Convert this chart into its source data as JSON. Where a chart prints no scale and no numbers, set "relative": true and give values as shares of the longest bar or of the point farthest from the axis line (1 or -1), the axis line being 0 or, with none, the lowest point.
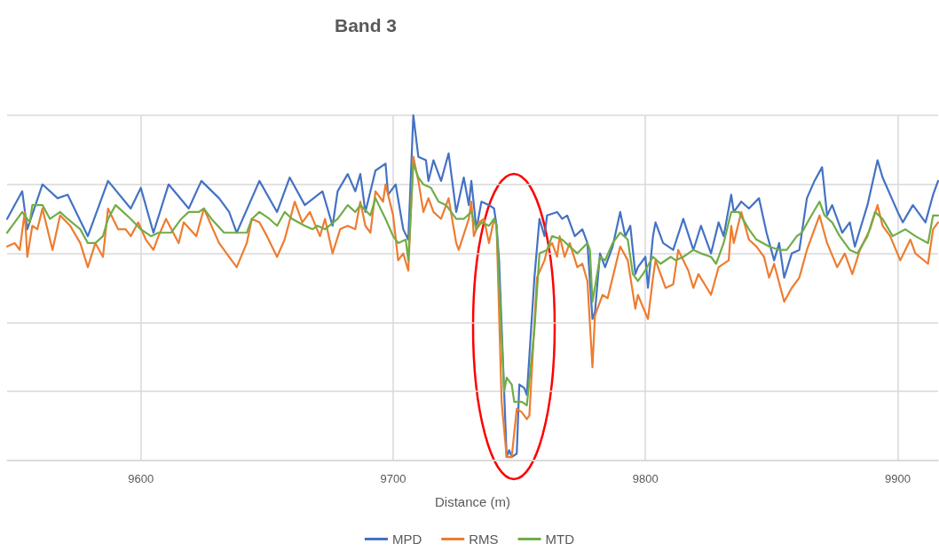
{
  "chart_data": {
    "type": "line",
    "title": "Band 3",
    "xlabel": "Distance (m)",
    "relative": true,
    "grid": true,
    "legend": "bottom",
    "marker": "none",
    "line_style": "solid",
    "xlim": [
      9547,
      9916
    ],
    "xticks": [
      9600,
      9700,
      9800,
      9900
    ],
    "series": [
      {
        "name": "MPD",
        "color": "#4472c4",
        "x": [
          9547,
          9553,
          9555,
          9561,
          9567,
          9571,
          9579,
          9587,
          9596,
          9600,
          9605,
          9611,
          9619,
          9624,
          9631,
          9635,
          9638,
          9647,
          9654,
          9659,
          9665,
          9672,
          9676,
          9678,
          9682,
          9685,
          9687,
          9689,
          9693,
          9697,
          9698,
          9701,
          9704,
          9706,
          9708,
          9710,
          9713,
          9714,
          9716,
          9719,
          9722,
          9725,
          9728,
          9730,
          9731,
          9733,
          9735,
          9738,
          9740,
          9741,
          9742,
          9744,
          9745,
          9746,
          9747,
          9749,
          9750,
          9752,
          9753,
          9756,
          9758,
          9760,
          9761,
          9765,
          9767,
          9769,
          9772,
          9775,
          9777,
          9779,
          9780,
          9782,
          9784,
          9787,
          9790,
          9792,
          9794,
          9796,
          9797,
          9800,
          9801,
          9803,
          9804,
          9807,
          9811,
          9815,
          9819,
          9822,
          9826,
          9829,
          9831,
          9834,
          9835,
          9838,
          9841,
          9845,
          9848,
          9851,
          9853,
          9855,
          9858,
          9861,
          9864,
          9867,
          9870,
          9872,
          9874,
          9878,
          9881,
          9883,
          9888,
          9892,
          9894,
          9900,
          9902,
          9906,
          9911,
          9914,
          9916
        ],
        "values": [
          0.7,
          0.78,
          0.67,
          0.8,
          0.76,
          0.77,
          0.65,
          0.81,
          0.73,
          0.79,
          0.66,
          0.8,
          0.73,
          0.81,
          0.76,
          0.72,
          0.66,
          0.81,
          0.72,
          0.82,
          0.74,
          0.78,
          0.68,
          0.78,
          0.83,
          0.78,
          0.83,
          0.72,
          0.84,
          0.86,
          0.77,
          0.8,
          0.67,
          0.64,
          1.0,
          0.88,
          0.87,
          0.81,
          0.87,
          0.81,
          0.89,
          0.72,
          0.82,
          0.74,
          0.81,
          0.67,
          0.75,
          0.74,
          0.73,
          0.68,
          0.58,
          0.2,
          0.01,
          0.03,
          0.01,
          0.02,
          0.22,
          0.21,
          0.19,
          0.53,
          0.7,
          0.65,
          0.71,
          0.72,
          0.7,
          0.71,
          0.65,
          0.67,
          0.63,
          0.41,
          0.43,
          0.6,
          0.56,
          0.62,
          0.72,
          0.65,
          0.68,
          0.54,
          0.56,
          0.59,
          0.5,
          0.65,
          0.69,
          0.63,
          0.61,
          0.7,
          0.61,
          0.68,
          0.6,
          0.69,
          0.65,
          0.77,
          0.72,
          0.75,
          0.73,
          0.76,
          0.66,
          0.58,
          0.63,
          0.53,
          0.6,
          0.61,
          0.76,
          0.81,
          0.85,
          0.71,
          0.74,
          0.66,
          0.69,
          0.62,
          0.74,
          0.87,
          0.82,
          0.72,
          0.69,
          0.74,
          0.69,
          0.77,
          0.81
        ]
      },
      {
        "name": "RMS",
        "color": "#ed7d31",
        "x": [
          9547,
          9550,
          9552,
          9554,
          9555,
          9557,
          9559,
          9561,
          9565,
          9568,
          9572,
          9576,
          9579,
          9582,
          9585,
          9587,
          9589,
          9591,
          9594,
          9596,
          9599,
          9602,
          9605,
          9607,
          9610,
          9615,
          9617,
          9622,
          9625,
          9628,
          9631,
          9633,
          9638,
          9642,
          9644,
          9647,
          9650,
          9654,
          9657,
          9661,
          9664,
          9667,
          9671,
          9673,
          9676,
          9679,
          9682,
          9685,
          9687,
          9689,
          9691,
          9693,
          9696,
          9697,
          9700,
          9702,
          9704,
          9706,
          9708,
          9710,
          9712,
          9714,
          9716,
          9719,
          9722,
          9725,
          9726,
          9730,
          9731,
          9732,
          9734,
          9736,
          9738,
          9740,
          9741,
          9743,
          9745,
          9747,
          9749,
          9751,
          9753,
          9754,
          9757,
          9760,
          9761,
          9763,
          9765,
          9766,
          9768,
          9770,
          9773,
          9775,
          9777,
          9779,
          9780,
          9783,
          9785,
          9788,
          9790,
          9793,
          9796,
          9797,
          9801,
          9803,
          9804,
          9808,
          9811,
          9813,
          9817,
          9819,
          9821,
          9826,
          9829,
          9833,
          9834,
          9835,
          9838,
          9841,
          9844,
          9847,
          9849,
          9851,
          9855,
          9858,
          9861,
          9864,
          9869,
          9872,
          9876,
          9879,
          9882,
          9885,
          9889,
          9892,
          9894,
          9897,
          9901,
          9905,
          9907,
          9912,
          9914,
          9916
        ],
        "values": [
          0.62,
          0.63,
          0.61,
          0.72,
          0.59,
          0.68,
          0.67,
          0.73,
          0.61,
          0.71,
          0.68,
          0.63,
          0.56,
          0.63,
          0.59,
          0.73,
          0.7,
          0.67,
          0.67,
          0.65,
          0.69,
          0.64,
          0.61,
          0.65,
          0.7,
          0.63,
          0.69,
          0.65,
          0.73,
          0.68,
          0.63,
          0.61,
          0.56,
          0.63,
          0.7,
          0.69,
          0.65,
          0.59,
          0.64,
          0.75,
          0.69,
          0.72,
          0.65,
          0.7,
          0.6,
          0.67,
          0.68,
          0.67,
          0.75,
          0.68,
          0.66,
          0.78,
          0.75,
          0.8,
          0.71,
          0.58,
          0.6,
          0.55,
          0.88,
          0.81,
          0.72,
          0.76,
          0.72,
          0.7,
          0.76,
          0.63,
          0.61,
          0.7,
          0.75,
          0.65,
          0.69,
          0.7,
          0.63,
          0.7,
          0.68,
          0.17,
          0.01,
          0.01,
          0.15,
          0.14,
          0.12,
          0.13,
          0.53,
          0.58,
          0.61,
          0.63,
          0.59,
          0.65,
          0.59,
          0.63,
          0.56,
          0.57,
          0.52,
          0.27,
          0.42,
          0.48,
          0.47,
          0.56,
          0.62,
          0.58,
          0.44,
          0.48,
          0.41,
          0.53,
          0.58,
          0.5,
          0.51,
          0.61,
          0.55,
          0.5,
          0.54,
          0.48,
          0.56,
          0.58,
          0.68,
          0.63,
          0.72,
          0.64,
          0.62,
          0.59,
          0.53,
          0.57,
          0.46,
          0.5,
          0.53,
          0.61,
          0.71,
          0.63,
          0.56,
          0.6,
          0.54,
          0.61,
          0.67,
          0.74,
          0.68,
          0.65,
          0.58,
          0.64,
          0.6,
          0.57,
          0.67,
          0.69
        ]
      },
      {
        "name": "MTD",
        "color": "#70ad47",
        "x": [
          9547,
          9550,
          9553,
          9556,
          9557,
          9561,
          9564,
          9568,
          9571,
          9576,
          9579,
          9582,
          9585,
          9587,
          9590,
          9593,
          9596,
          9600,
          9604,
          9607,
          9612,
          9616,
          9619,
          9623,
          9625,
          9628,
          9633,
          9638,
          9642,
          9644,
          9647,
          9651,
          9654,
          9657,
          9660,
          9665,
          9668,
          9670,
          9673,
          9678,
          9682,
          9685,
          9687,
          9691,
          9693,
          9697,
          9700,
          9702,
          9705,
          9706,
          9708,
          9710,
          9712,
          9715,
          9718,
          9721,
          9725,
          9728,
          9731,
          9733,
          9735,
          9738,
          9740,
          9741,
          9744,
          9745,
          9747,
          9748,
          9751,
          9753,
          9756,
          9758,
          9761,
          9763,
          9767,
          9770,
          9773,
          9777,
          9778,
          9779,
          9782,
          9784,
          9787,
          9790,
          9793,
          9795,
          9797,
          9799,
          9803,
          9806,
          9810,
          9812,
          9815,
          9819,
          9822,
          9826,
          9828,
          9831,
          9834,
          9837,
          9841,
          9844,
          9849,
          9853,
          9856,
          9860,
          9862,
          9865,
          9869,
          9871,
          9874,
          9877,
          9881,
          9884,
          9888,
          9891,
          9894,
          9898,
          9903,
          9907,
          9912,
          9914,
          9916
        ],
        "values": [
          0.66,
          0.69,
          0.72,
          0.69,
          0.74,
          0.74,
          0.7,
          0.72,
          0.7,
          0.67,
          0.63,
          0.63,
          0.65,
          0.7,
          0.74,
          0.72,
          0.7,
          0.67,
          0.65,
          0.66,
          0.66,
          0.7,
          0.72,
          0.72,
          0.73,
          0.7,
          0.66,
          0.66,
          0.66,
          0.7,
          0.72,
          0.7,
          0.68,
          0.72,
          0.7,
          0.68,
          0.67,
          0.68,
          0.67,
          0.7,
          0.74,
          0.72,
          0.74,
          0.71,
          0.76,
          0.7,
          0.65,
          0.63,
          0.64,
          0.58,
          0.86,
          0.82,
          0.8,
          0.79,
          0.75,
          0.74,
          0.7,
          0.7,
          0.72,
          0.67,
          0.69,
          0.68,
          0.7,
          0.68,
          0.2,
          0.24,
          0.22,
          0.17,
          0.17,
          0.16,
          0.38,
          0.6,
          0.61,
          0.65,
          0.64,
          0.62,
          0.6,
          0.63,
          0.61,
          0.46,
          0.59,
          0.58,
          0.63,
          0.66,
          0.64,
          0.54,
          0.52,
          0.54,
          0.59,
          0.57,
          0.59,
          0.58,
          0.59,
          0.61,
          0.6,
          0.59,
          0.57,
          0.63,
          0.72,
          0.72,
          0.67,
          0.64,
          0.62,
          0.61,
          0.61,
          0.65,
          0.66,
          0.7,
          0.75,
          0.71,
          0.69,
          0.65,
          0.61,
          0.6,
          0.65,
          0.72,
          0.7,
          0.65,
          0.67,
          0.65,
          0.63,
          0.71,
          0.71
        ]
      }
    ]
  }
}
